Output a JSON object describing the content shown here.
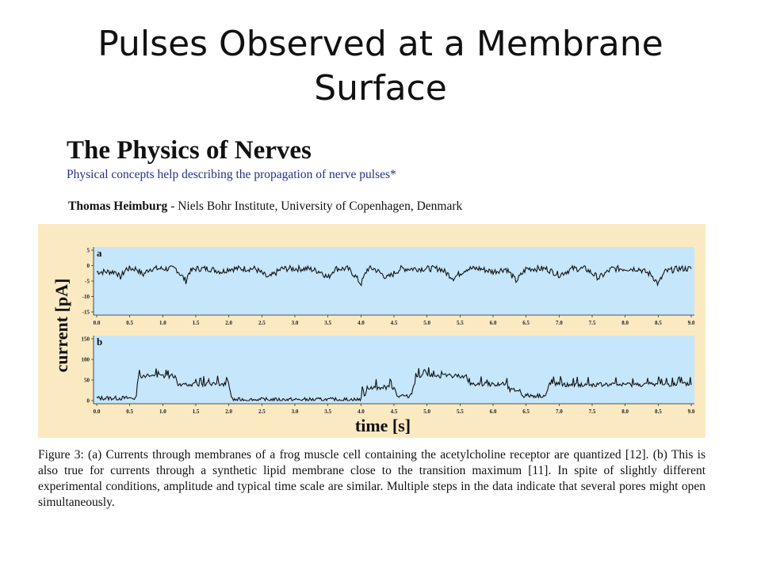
{
  "slide": {
    "title": "Pulses Observed at a Membrane Surface"
  },
  "paper": {
    "title": "The Physics of Nerves",
    "subtitle": "Physical concepts help describing the propagation of nerve pulses*",
    "author_name": "Thomas Heimburg",
    "author_affiliation": " - Niels Bohr Institute, University of Copenhagen, Denmark"
  },
  "figure": {
    "ylabel": "current [pA]",
    "xlabel": "time [s]",
    "panel_a_label": "a",
    "panel_b_label": "b",
    "colors": {
      "frame": "#fbe9c2",
      "plot_bg": "#c5e6fb",
      "trace": "#111111"
    }
  },
  "caption": "Figure 3: (a) Currents through membranes of a frog muscle cell containing the acetylcholine receptor are quantized [12]. (b) This is also true for currents through a synthetic lipid membrane close to the transition maximum [11]. In spite of slightly different experimental conditions, amplitude and typical time scale are similar. Multiple steps in the data indicate that several pores might open simultaneously.",
  "chart_data": [
    {
      "type": "line",
      "panel": "a",
      "xlim": [
        0.0,
        9.0
      ],
      "ylim": [
        -15,
        5
      ],
      "x_ticks": [
        "0.0",
        "0.5",
        "1.0",
        "1.5",
        "2.0",
        "2.5",
        "3.0",
        "3.5",
        "4.0",
        "4.5",
        "5.0",
        "5.5",
        "6.0",
        "6.5",
        "7.0",
        "7.5",
        "8.0",
        "8.5",
        "9.0"
      ],
      "y_ticks": [
        "5",
        "0",
        "-5",
        "-10",
        "-15"
      ],
      "series": [
        {
          "x": [
            0.0,
            0.3,
            0.35,
            0.45,
            0.6,
            0.7,
            0.8,
            1.0,
            1.2,
            1.35,
            1.4,
            1.5,
            1.7,
            1.9,
            2.0,
            2.2,
            2.4,
            2.6,
            2.8,
            3.0,
            3.2,
            3.4,
            3.5,
            3.6,
            3.8,
            3.9,
            4.0,
            4.1,
            4.2,
            4.4,
            4.6,
            4.8,
            5.0,
            5.2,
            5.4,
            5.6,
            5.8,
            6.0,
            6.2,
            6.35,
            6.5,
            6.8,
            7.0,
            7.2,
            7.4,
            7.6,
            7.8,
            8.0,
            8.2,
            8.4,
            8.5,
            8.6,
            8.8,
            9.0
          ],
          "y": [
            -2,
            -2,
            -4,
            -1,
            -1,
            -3,
            -1,
            -1,
            -1,
            -5,
            -2,
            -1,
            -1,
            -2,
            -1,
            -1,
            -1,
            -4,
            -1,
            -1,
            -1,
            -2,
            -4,
            -1,
            -1,
            -3,
            -6,
            -1,
            -1,
            -4,
            -1,
            -1,
            -1,
            -1,
            -4,
            -1,
            -1,
            -2,
            -1,
            -5,
            -1,
            -1,
            -3,
            -1,
            -1,
            -4,
            -1,
            -1,
            -1,
            -3,
            -6,
            -2,
            -1,
            -1
          ]
        }
      ]
    },
    {
      "type": "line",
      "panel": "b",
      "xlim": [
        0.0,
        9.0
      ],
      "ylim": [
        0,
        150
      ],
      "x_ticks": [
        "0.0",
        "0.5",
        "1.0",
        "1.5",
        "2.0",
        "2.5",
        "3.0",
        "3.5",
        "4.0",
        "4.5",
        "5.0",
        "5.5",
        "6.0",
        "6.5",
        "7.0",
        "7.5",
        "8.0",
        "8.5",
        "9.0"
      ],
      "y_ticks": [
        "150",
        "100",
        "50",
        "0"
      ],
      "series": [
        {
          "x": [
            0.0,
            0.6,
            0.62,
            1.2,
            1.22,
            2.0,
            2.05,
            4.0,
            4.02,
            4.05,
            4.1,
            4.5,
            4.55,
            4.75,
            4.85,
            5.6,
            5.62,
            6.2,
            6.25,
            6.4,
            6.45,
            6.8,
            6.85,
            7.0,
            7.05,
            9.0
          ],
          "y": [
            6,
            6,
            60,
            60,
            40,
            40,
            2,
            2,
            32,
            10,
            32,
            32,
            10,
            10,
            60,
            60,
            40,
            40,
            25,
            25,
            12,
            12,
            40,
            40,
            38,
            40
          ]
        }
      ]
    }
  ]
}
